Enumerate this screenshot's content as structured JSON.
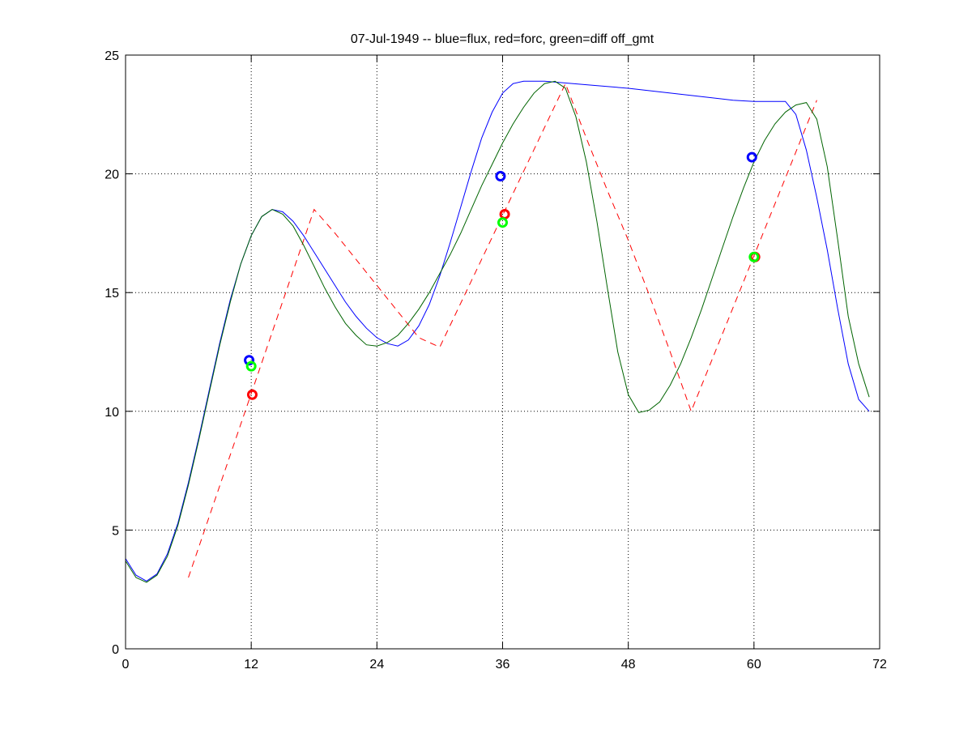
{
  "chart_data": {
    "type": "line",
    "title": "07-Jul-1949 -- blue=flux, red=forc, green=diff off_gmt",
    "xlabel": "",
    "ylabel": "",
    "xlim": [
      0,
      72
    ],
    "ylim": [
      0,
      25
    ],
    "x_ticks": [
      0,
      12,
      24,
      36,
      48,
      60,
      72
    ],
    "y_ticks": [
      0,
      5,
      10,
      15,
      20,
      25
    ],
    "grid": true,
    "series": [
      {
        "color": "#0000ff",
        "style": "solid",
        "points": [
          [
            0,
            3.8
          ],
          [
            1,
            3.1
          ],
          [
            2,
            2.85
          ],
          [
            3,
            3.15
          ],
          [
            4,
            4.0
          ],
          [
            5,
            5.3
          ],
          [
            6,
            7.0
          ],
          [
            7,
            8.9
          ],
          [
            8,
            10.9
          ],
          [
            9,
            12.9
          ],
          [
            10,
            14.7
          ],
          [
            11,
            16.2
          ],
          [
            12,
            17.4
          ],
          [
            13,
            18.2
          ],
          [
            14,
            18.5
          ],
          [
            15,
            18.4
          ],
          [
            16,
            18.0
          ],
          [
            17,
            17.4
          ],
          [
            18,
            16.7
          ],
          [
            19,
            16.0
          ],
          [
            20,
            15.3
          ],
          [
            21,
            14.6
          ],
          [
            22,
            14.0
          ],
          [
            23,
            13.5
          ],
          [
            24,
            13.1
          ],
          [
            25,
            12.85
          ],
          [
            26,
            12.75
          ],
          [
            27,
            13.0
          ],
          [
            28,
            13.6
          ],
          [
            29,
            14.5
          ],
          [
            30,
            15.7
          ],
          [
            31,
            17.1
          ],
          [
            32,
            18.6
          ],
          [
            33,
            20.1
          ],
          [
            34,
            21.5
          ],
          [
            35,
            22.6
          ],
          [
            36,
            23.4
          ],
          [
            37,
            23.8
          ],
          [
            38,
            23.9
          ],
          [
            40,
            23.9
          ],
          [
            44,
            23.75
          ],
          [
            48,
            23.6
          ],
          [
            52,
            23.4
          ],
          [
            56,
            23.2
          ],
          [
            58,
            23.1
          ],
          [
            60,
            23.05
          ],
          [
            63,
            23.05
          ],
          [
            64,
            22.5
          ],
          [
            65,
            21.0
          ],
          [
            66,
            19.0
          ],
          [
            67,
            16.8
          ],
          [
            68,
            14.3
          ],
          [
            69,
            12.0
          ],
          [
            70,
            10.5
          ],
          [
            71,
            10.0
          ]
        ]
      },
      {
        "color": "#ff0000",
        "style": "dashed",
        "points": [
          [
            6,
            3.0
          ],
          [
            18,
            18.5
          ],
          [
            20,
            17.5
          ],
          [
            22,
            16.4
          ],
          [
            24,
            15.3
          ],
          [
            26,
            14.2
          ],
          [
            28,
            13.1
          ],
          [
            30,
            12.7
          ],
          [
            42,
            23.8
          ],
          [
            44,
            21.5
          ],
          [
            46,
            19.3
          ],
          [
            48,
            17.2
          ],
          [
            50,
            14.9
          ],
          [
            52,
            12.5
          ],
          [
            54,
            10.0
          ],
          [
            66,
            23.1
          ]
        ]
      },
      {
        "color": "#006400",
        "style": "solid",
        "points": [
          [
            0,
            3.7
          ],
          [
            1,
            3.0
          ],
          [
            2,
            2.8
          ],
          [
            3,
            3.1
          ],
          [
            4,
            3.9
          ],
          [
            5,
            5.2
          ],
          [
            6,
            6.9
          ],
          [
            7,
            8.8
          ],
          [
            8,
            10.8
          ],
          [
            9,
            12.8
          ],
          [
            10,
            14.6
          ],
          [
            11,
            16.2
          ],
          [
            12,
            17.4
          ],
          [
            13,
            18.2
          ],
          [
            14,
            18.5
          ],
          [
            15,
            18.3
          ],
          [
            16,
            17.8
          ],
          [
            17,
            17.0
          ],
          [
            18,
            16.1
          ],
          [
            19,
            15.2
          ],
          [
            20,
            14.4
          ],
          [
            21,
            13.7
          ],
          [
            22,
            13.2
          ],
          [
            23,
            12.8
          ],
          [
            24,
            12.75
          ],
          [
            25,
            12.9
          ],
          [
            26,
            13.2
          ],
          [
            27,
            13.7
          ],
          [
            28,
            14.3
          ],
          [
            29,
            15.0
          ],
          [
            30,
            15.8
          ],
          [
            31,
            16.6
          ],
          [
            32,
            17.5
          ],
          [
            33,
            18.5
          ],
          [
            34,
            19.5
          ],
          [
            35,
            20.4
          ],
          [
            36,
            21.3
          ],
          [
            37,
            22.1
          ],
          [
            38,
            22.8
          ],
          [
            39,
            23.4
          ],
          [
            40,
            23.8
          ],
          [
            41,
            23.9
          ],
          [
            42,
            23.6
          ],
          [
            43,
            22.4
          ],
          [
            44,
            20.5
          ],
          [
            45,
            18.0
          ],
          [
            46,
            15.2
          ],
          [
            47,
            12.5
          ],
          [
            48,
            10.7
          ],
          [
            49,
            9.95
          ],
          [
            50,
            10.05
          ],
          [
            51,
            10.4
          ],
          [
            52,
            11.1
          ],
          [
            53,
            12.0
          ],
          [
            54,
            13.1
          ],
          [
            55,
            14.3
          ],
          [
            56,
            15.6
          ],
          [
            57,
            16.9
          ],
          [
            58,
            18.2
          ],
          [
            59,
            19.4
          ],
          [
            60,
            20.5
          ],
          [
            61,
            21.4
          ],
          [
            62,
            22.1
          ],
          [
            63,
            22.6
          ],
          [
            64,
            22.9
          ],
          [
            65,
            23.0
          ],
          [
            66,
            22.3
          ],
          [
            67,
            20.3
          ],
          [
            68,
            17.2
          ],
          [
            69,
            14.0
          ],
          [
            70,
            12.0
          ],
          [
            71,
            10.6
          ]
        ]
      }
    ],
    "markers": [
      {
        "color": "#0000ff",
        "x": 11.8,
        "y": 12.15
      },
      {
        "color": "#00ff00",
        "x": 12.0,
        "y": 11.9
      },
      {
        "color": "#ff0000",
        "x": 12.1,
        "y": 10.7
      },
      {
        "color": "#0000ff",
        "x": 35.8,
        "y": 19.9
      },
      {
        "color": "#ff0000",
        "x": 36.2,
        "y": 18.3
      },
      {
        "color": "#00ff00",
        "x": 36.0,
        "y": 17.95
      },
      {
        "color": "#0000ff",
        "x": 59.8,
        "y": 20.7
      },
      {
        "color": "#ff0000",
        "x": 60.1,
        "y": 16.5
      },
      {
        "color": "#00ff00",
        "x": 60.0,
        "y": 16.5
      }
    ]
  }
}
